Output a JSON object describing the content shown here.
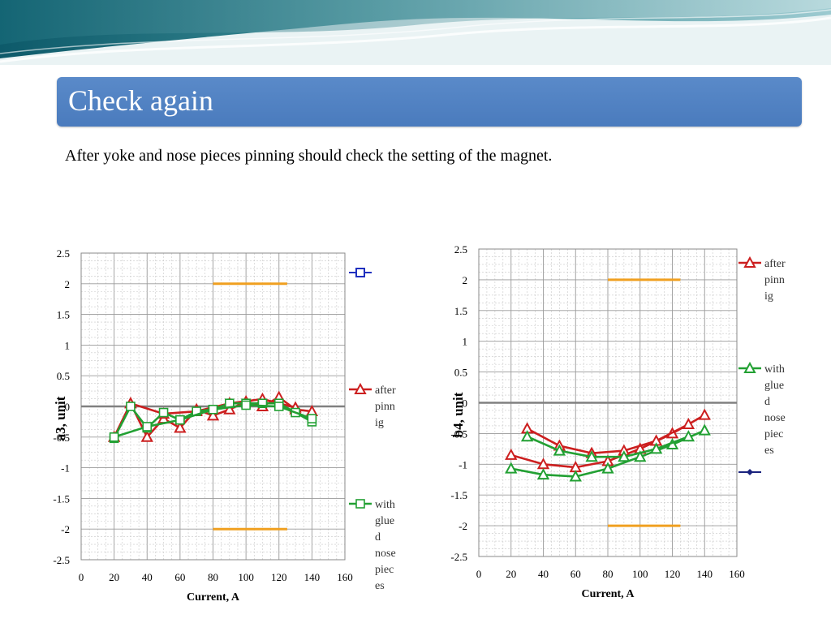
{
  "slide": {
    "title": "Check again",
    "subtitle": "After yoke and nose pieces pinning  should check the setting of the magnet."
  },
  "colors": {
    "title_bar": "#4f81bd",
    "after": "#cc1f1f",
    "glued": "#22a033",
    "limit": "#f0a020",
    "zero_line": "#808080",
    "blue_marker": "#1f2fbf",
    "navy_marker": "#1a237e"
  },
  "chart_data": [
    {
      "id": "a3",
      "type": "line",
      "title": "",
      "xlabel": "Current, A",
      "ylabel": "a3, unit",
      "xlim": [
        0,
        160
      ],
      "ylim": [
        -2.5,
        2.5
      ],
      "x_ticks": [
        "0",
        "20",
        "40",
        "60",
        "80",
        "100",
        "120",
        "140",
        "160"
      ],
      "y_ticks": [
        "2.5",
        "2",
        "1.5",
        "1",
        "0.5",
        "0",
        "-0.5",
        "-1",
        "-1.5",
        "-2",
        "-2.5"
      ],
      "grid": true,
      "limits": [
        {
          "x": [
            80,
            125
          ],
          "y": 2
        },
        {
          "x": [
            80,
            125
          ],
          "y": -2
        }
      ],
      "legend": [
        {
          "label": [
            "after",
            "pinn",
            "ig"
          ],
          "marker": "triangle",
          "color_key": "after"
        },
        {
          "label": [
            "with",
            "glue",
            "d",
            "nose",
            "piec",
            "es"
          ],
          "marker": "square",
          "color_key": "glued"
        }
      ],
      "series": [
        {
          "color_key": "after",
          "marker": "triangle",
          "x": [
            20,
            30,
            40,
            50,
            60,
            70,
            80,
            90,
            100,
            110,
            120,
            130,
            140
          ],
          "y": [
            -0.5,
            0.05,
            -0.5,
            -0.2,
            -0.35,
            -0.05,
            -0.15,
            -0.05,
            0.08,
            0.0,
            0.15,
            -0.05,
            -0.08
          ]
        },
        {
          "color_key": "after",
          "marker": "triangle",
          "x": [
            30,
            50,
            70,
            90,
            110,
            130
          ],
          "y": [
            0.05,
            -0.12,
            -0.08,
            0.05,
            0.12,
            -0.02
          ]
        },
        {
          "color_key": "glued",
          "marker": "square",
          "x": [
            20,
            30,
            40,
            50,
            60,
            70,
            80,
            90,
            100,
            110,
            120,
            130,
            140
          ],
          "y": [
            -0.52,
            0.0,
            -0.35,
            -0.1,
            -0.22,
            -0.08,
            -0.05,
            0.05,
            0.05,
            0.05,
            0.05,
            -0.1,
            -0.25
          ]
        },
        {
          "color_key": "glued",
          "marker": "square",
          "x": [
            20,
            40,
            60,
            80,
            100,
            120,
            140
          ],
          "y": [
            -0.5,
            -0.33,
            -0.22,
            -0.05,
            0.02,
            0.0,
            -0.2
          ]
        }
      ]
    },
    {
      "id": "b4",
      "type": "line",
      "title": "",
      "xlabel": "Current, A",
      "ylabel": "b4, unit",
      "xlim": [
        0,
        160
      ],
      "ylim": [
        -2.5,
        2.5
      ],
      "x_ticks": [
        "0",
        "20",
        "40",
        "60",
        "80",
        "100",
        "120",
        "140",
        "160"
      ],
      "y_ticks": [
        "2.5",
        "2",
        "1.5",
        "1",
        "0.5",
        "0",
        "-0.5",
        "-1",
        "-1.5",
        "-2",
        "-2.5"
      ],
      "grid": true,
      "limits": [
        {
          "x": [
            80,
            125
          ],
          "y": 2
        },
        {
          "x": [
            80,
            125
          ],
          "y": -2
        }
      ],
      "legend": [
        {
          "label": [
            "after",
            "pinn",
            "ig"
          ],
          "marker": "triangle",
          "color_key": "after"
        },
        {
          "label": [
            "with",
            "glue",
            "d",
            "nose",
            "piec",
            "es"
          ],
          "marker": "triangle",
          "color_key": "glued"
        }
      ],
      "series": [
        {
          "color_key": "after",
          "marker": "triangle",
          "x": [
            20,
            40,
            60,
            80,
            100,
            120,
            140
          ],
          "y": [
            -0.85,
            -1.0,
            -1.05,
            -0.95,
            -0.75,
            -0.5,
            -0.2
          ]
        },
        {
          "color_key": "after",
          "marker": "triangle",
          "x": [
            30,
            50,
            70,
            90,
            110,
            130
          ],
          "y": [
            -0.42,
            -0.7,
            -0.82,
            -0.78,
            -0.62,
            -0.35
          ]
        },
        {
          "color_key": "glued",
          "marker": "triangle",
          "x": [
            20,
            40,
            60,
            80,
            100,
            120,
            140
          ],
          "y": [
            -1.07,
            -1.17,
            -1.2,
            -1.07,
            -0.88,
            -0.68,
            -0.45
          ]
        },
        {
          "color_key": "glued",
          "marker": "triangle",
          "x": [
            30,
            50,
            70,
            90,
            110,
            130
          ],
          "y": [
            -0.55,
            -0.78,
            -0.88,
            -0.88,
            -0.75,
            -0.55
          ]
        }
      ]
    }
  ]
}
